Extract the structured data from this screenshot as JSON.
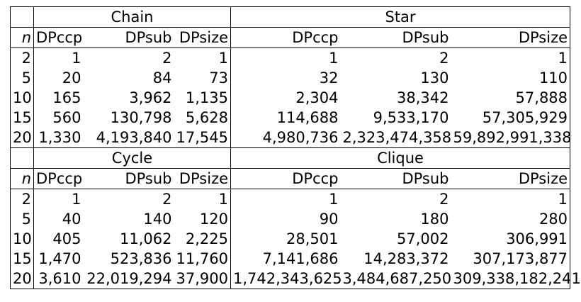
{
  "sections": [
    {
      "left": {
        "title": "Chain",
        "headers": [
          "DPccp",
          "DPsub",
          "DPsize"
        ]
      },
      "right": {
        "title": "Star",
        "headers": [
          "DPccp",
          "DPsub",
          "DPsize"
        ]
      },
      "n_label": "n",
      "rows": [
        {
          "n": "2",
          "l": [
            "1",
            "2",
            "1"
          ],
          "r": [
            "1",
            "2",
            "1"
          ]
        },
        {
          "n": "5",
          "l": [
            "20",
            "84",
            "73"
          ],
          "r": [
            "32",
            "130",
            "110"
          ]
        },
        {
          "n": "10",
          "l": [
            "165",
            "3,962",
            "1,135"
          ],
          "r": [
            "2,304",
            "38,342",
            "57,888"
          ]
        },
        {
          "n": "15",
          "l": [
            "560",
            "130,798",
            "5,628"
          ],
          "r": [
            "114,688",
            "9,533,170",
            "57,305,929"
          ]
        },
        {
          "n": "20",
          "l": [
            "1,330",
            "4,193,840",
            "17,545"
          ],
          "r": [
            "4,980,736",
            "2,323,474,358",
            "59,892,991,338"
          ]
        }
      ]
    },
    {
      "left": {
        "title": "Cycle",
        "headers": [
          "DPccp",
          "DPsub",
          "DPsize"
        ]
      },
      "right": {
        "title": "Clique",
        "headers": [
          "DPccp",
          "DPsub",
          "DPsize"
        ]
      },
      "n_label": "n",
      "rows": [
        {
          "n": "2",
          "l": [
            "1",
            "2",
            "1"
          ],
          "r": [
            "1",
            "2",
            "1"
          ]
        },
        {
          "n": "5",
          "l": [
            "40",
            "140",
            "120"
          ],
          "r": [
            "90",
            "180",
            "280"
          ]
        },
        {
          "n": "10",
          "l": [
            "405",
            "11,062",
            "2,225"
          ],
          "r": [
            "28,501",
            "57,002",
            "306,991"
          ]
        },
        {
          "n": "15",
          "l": [
            "1,470",
            "523,836",
            "11,760"
          ],
          "r": [
            "7,141,686",
            "14,283,372",
            "307,173,877"
          ]
        },
        {
          "n": "20",
          "l": [
            "3,610",
            "22,019,294",
            "37,900"
          ],
          "r": [
            "1,742,343,625",
            "3,484,687,250",
            "309,338,182,241"
          ]
        }
      ]
    }
  ]
}
